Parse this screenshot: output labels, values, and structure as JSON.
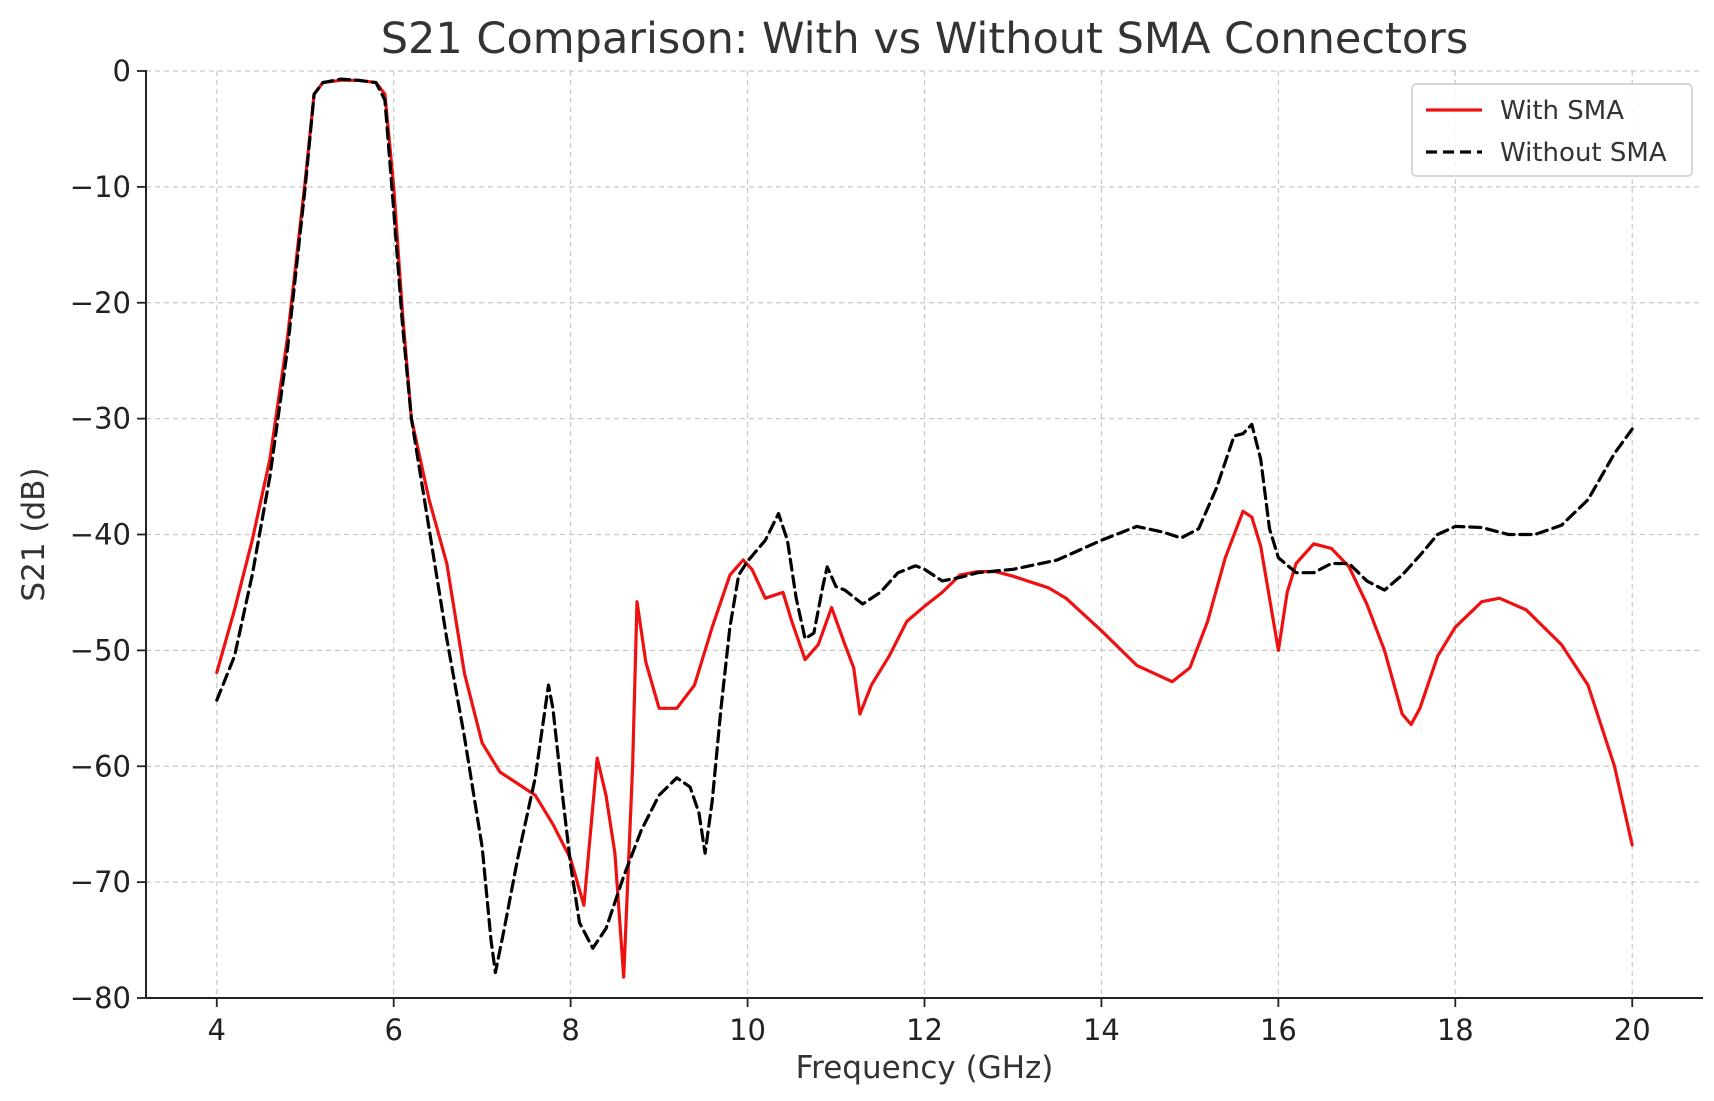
{
  "chart_data": {
    "type": "line",
    "title": "S21 Comparison: With vs Without SMA Connectors",
    "xlabel": "Frequency (GHz)",
    "ylabel": "S21 (dB)",
    "xlim": [
      3.2,
      20.8
    ],
    "ylim": [
      -80,
      0
    ],
    "xticks": [
      4,
      6,
      8,
      10,
      12,
      14,
      16,
      18,
      20
    ],
    "yticks": [
      0,
      -10,
      -20,
      -30,
      -40,
      -50,
      -60,
      -70,
      -80
    ],
    "xtick_labels": [
      "4",
      "6",
      "8",
      "10",
      "12",
      "14",
      "16",
      "18",
      "20"
    ],
    "ytick_labels": [
      "0",
      "−10",
      "−20",
      "−30",
      "−40",
      "−50",
      "−60",
      "−70",
      "−80"
    ],
    "grid": true,
    "legend_position": "top-right",
    "series": [
      {
        "name": "With SMA",
        "color": "#ee1111",
        "style": "solid",
        "points": [
          [
            4.0,
            -51.9
          ],
          [
            4.2,
            -46.5
          ],
          [
            4.4,
            -40.5
          ],
          [
            4.6,
            -33.5
          ],
          [
            4.8,
            -23.0
          ],
          [
            5.0,
            -9.5
          ],
          [
            5.1,
            -2.0
          ],
          [
            5.2,
            -1.0
          ],
          [
            5.4,
            -0.8
          ],
          [
            5.6,
            -0.8
          ],
          [
            5.8,
            -1.0
          ],
          [
            5.9,
            -2.0
          ],
          [
            6.0,
            -10.0
          ],
          [
            6.1,
            -21.0
          ],
          [
            6.2,
            -30.0
          ],
          [
            6.4,
            -37.0
          ],
          [
            6.6,
            -42.5
          ],
          [
            6.8,
            -52.0
          ],
          [
            7.0,
            -58.0
          ],
          [
            7.2,
            -60.5
          ],
          [
            7.4,
            -61.5
          ],
          [
            7.6,
            -62.5
          ],
          [
            7.8,
            -65.0
          ],
          [
            8.0,
            -68.0
          ],
          [
            8.15,
            -72.0
          ],
          [
            8.3,
            -59.3
          ],
          [
            8.4,
            -62.5
          ],
          [
            8.5,
            -67.5
          ],
          [
            8.6,
            -78.2
          ],
          [
            8.7,
            -60.0
          ],
          [
            8.75,
            -45.8
          ],
          [
            8.85,
            -51.0
          ],
          [
            9.0,
            -55.0
          ],
          [
            9.2,
            -55.0
          ],
          [
            9.4,
            -53.0
          ],
          [
            9.6,
            -48.0
          ],
          [
            9.8,
            -43.5
          ],
          [
            9.95,
            -42.2
          ],
          [
            10.05,
            -43.0
          ],
          [
            10.2,
            -45.5
          ],
          [
            10.4,
            -45.0
          ],
          [
            10.5,
            -47.5
          ],
          [
            10.65,
            -50.8
          ],
          [
            10.8,
            -49.5
          ],
          [
            10.95,
            -46.3
          ],
          [
            11.1,
            -49.5
          ],
          [
            11.2,
            -51.5
          ],
          [
            11.27,
            -55.5
          ],
          [
            11.4,
            -53.0
          ],
          [
            11.6,
            -50.5
          ],
          [
            11.8,
            -47.5
          ],
          [
            12.0,
            -46.2
          ],
          [
            12.2,
            -45.0
          ],
          [
            12.4,
            -43.5
          ],
          [
            12.6,
            -43.2
          ],
          [
            12.8,
            -43.2
          ],
          [
            13.0,
            -43.6
          ],
          [
            13.4,
            -44.6
          ],
          [
            13.6,
            -45.5
          ],
          [
            14.0,
            -48.3
          ],
          [
            14.4,
            -51.3
          ],
          [
            14.8,
            -52.7
          ],
          [
            15.0,
            -51.5
          ],
          [
            15.2,
            -47.5
          ],
          [
            15.4,
            -42.0
          ],
          [
            15.6,
            -38.0
          ],
          [
            15.7,
            -38.5
          ],
          [
            15.8,
            -41.0
          ],
          [
            15.9,
            -45.5
          ],
          [
            16.0,
            -50.0
          ],
          [
            16.1,
            -45.0
          ],
          [
            16.2,
            -42.5
          ],
          [
            16.4,
            -40.8
          ],
          [
            16.6,
            -41.2
          ],
          [
            16.8,
            -42.8
          ],
          [
            17.0,
            -46.0
          ],
          [
            17.2,
            -50.0
          ],
          [
            17.4,
            -55.5
          ],
          [
            17.5,
            -56.4
          ],
          [
            17.6,
            -55.0
          ],
          [
            17.8,
            -50.5
          ],
          [
            18.0,
            -48.0
          ],
          [
            18.3,
            -45.8
          ],
          [
            18.5,
            -45.5
          ],
          [
            18.8,
            -46.5
          ],
          [
            19.2,
            -49.5
          ],
          [
            19.5,
            -53.0
          ],
          [
            19.8,
            -60.0
          ],
          [
            20.0,
            -66.8
          ]
        ]
      },
      {
        "name": "Without SMA",
        "color": "#000000",
        "style": "dashed",
        "points": [
          [
            4.0,
            -54.3
          ],
          [
            4.2,
            -50.5
          ],
          [
            4.4,
            -43.5
          ],
          [
            4.6,
            -35.0
          ],
          [
            4.8,
            -24.0
          ],
          [
            5.0,
            -10.0
          ],
          [
            5.1,
            -2.0
          ],
          [
            5.2,
            -1.0
          ],
          [
            5.4,
            -0.7
          ],
          [
            5.6,
            -0.8
          ],
          [
            5.8,
            -1.0
          ],
          [
            5.9,
            -2.5
          ],
          [
            6.0,
            -12.0
          ],
          [
            6.1,
            -22.0
          ],
          [
            6.2,
            -30.0
          ],
          [
            6.4,
            -39.5
          ],
          [
            6.6,
            -49.0
          ],
          [
            6.8,
            -57.5
          ],
          [
            7.0,
            -67.0
          ],
          [
            7.1,
            -75.0
          ],
          [
            7.15,
            -77.8
          ],
          [
            7.25,
            -74.0
          ],
          [
            7.4,
            -68.0
          ],
          [
            7.6,
            -61.0
          ],
          [
            7.75,
            -53.0
          ],
          [
            7.8,
            -55.0
          ],
          [
            7.9,
            -62.0
          ],
          [
            8.0,
            -68.5
          ],
          [
            8.1,
            -73.5
          ],
          [
            8.25,
            -75.7
          ],
          [
            8.4,
            -74.0
          ],
          [
            8.6,
            -69.5
          ],
          [
            8.8,
            -65.5
          ],
          [
            9.0,
            -62.5
          ],
          [
            9.2,
            -61.0
          ],
          [
            9.35,
            -61.8
          ],
          [
            9.45,
            -64.0
          ],
          [
            9.52,
            -67.5
          ],
          [
            9.6,
            -63.0
          ],
          [
            9.7,
            -55.0
          ],
          [
            9.8,
            -48.0
          ],
          [
            9.9,
            -43.5
          ],
          [
            10.0,
            -42.3
          ],
          [
            10.2,
            -40.5
          ],
          [
            10.35,
            -38.2
          ],
          [
            10.45,
            -40.5
          ],
          [
            10.55,
            -45.5
          ],
          [
            10.65,
            -49.0
          ],
          [
            10.75,
            -48.5
          ],
          [
            10.85,
            -44.5
          ],
          [
            10.9,
            -42.8
          ],
          [
            11.0,
            -44.5
          ],
          [
            11.1,
            -44.8
          ],
          [
            11.3,
            -46.0
          ],
          [
            11.5,
            -45.0
          ],
          [
            11.7,
            -43.3
          ],
          [
            11.9,
            -42.7
          ],
          [
            12.0,
            -43.0
          ],
          [
            12.2,
            -44.0
          ],
          [
            12.4,
            -43.7
          ],
          [
            12.6,
            -43.3
          ],
          [
            13.0,
            -43.0
          ],
          [
            13.5,
            -42.2
          ],
          [
            14.0,
            -40.5
          ],
          [
            14.4,
            -39.3
          ],
          [
            14.7,
            -39.8
          ],
          [
            14.9,
            -40.3
          ],
          [
            15.1,
            -39.5
          ],
          [
            15.3,
            -36.0
          ],
          [
            15.5,
            -31.5
          ],
          [
            15.6,
            -31.3
          ],
          [
            15.7,
            -30.5
          ],
          [
            15.8,
            -33.5
          ],
          [
            15.9,
            -39.5
          ],
          [
            16.0,
            -42.0
          ],
          [
            16.2,
            -43.3
          ],
          [
            16.4,
            -43.3
          ],
          [
            16.6,
            -42.5
          ],
          [
            16.8,
            -42.5
          ],
          [
            17.0,
            -44.0
          ],
          [
            17.2,
            -44.8
          ],
          [
            17.4,
            -43.5
          ],
          [
            17.6,
            -41.8
          ],
          [
            17.8,
            -40.0
          ],
          [
            18.0,
            -39.3
          ],
          [
            18.3,
            -39.4
          ],
          [
            18.6,
            -40.0
          ],
          [
            18.9,
            -40.0
          ],
          [
            19.2,
            -39.2
          ],
          [
            19.5,
            -37.0
          ],
          [
            19.8,
            -33.0
          ],
          [
            20.0,
            -30.9
          ]
        ]
      }
    ]
  }
}
